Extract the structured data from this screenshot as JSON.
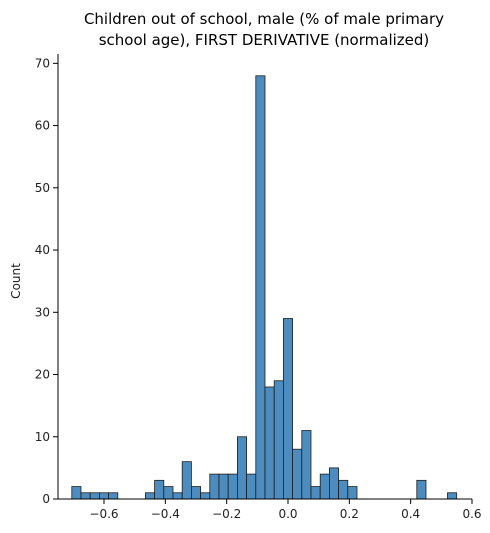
{
  "chart_data": {
    "type": "bar",
    "title_line1": "Children out of school, male (% of male primary",
    "title_line2": "school age), FIRST DERIVATIVE (normalized)",
    "xlabel": "",
    "ylabel": "Count",
    "xlim": [
      -0.75,
      0.6
    ],
    "ylim": [
      0,
      71.5
    ],
    "xticks": [
      -0.6,
      -0.4,
      -0.2,
      0.0,
      0.2,
      0.4,
      0.6
    ],
    "xtick_labels": [
      "−0.6",
      "−0.4",
      "−0.2",
      "0.0",
      "0.2",
      "0.4",
      "0.6"
    ],
    "yticks": [
      0,
      10,
      20,
      30,
      40,
      50,
      60,
      70
    ],
    "ytick_labels": [
      "0",
      "10",
      "20",
      "30",
      "40",
      "50",
      "60",
      "70"
    ],
    "bar_color": "#4c8cbf",
    "bins": [
      {
        "x0": -0.705,
        "x1": -0.675,
        "count": 2
      },
      {
        "x0": -0.675,
        "x1": -0.645,
        "count": 1
      },
      {
        "x0": -0.645,
        "x1": -0.615,
        "count": 1
      },
      {
        "x0": -0.615,
        "x1": -0.585,
        "count": 1
      },
      {
        "x0": -0.585,
        "x1": -0.555,
        "count": 1
      },
      {
        "x0": -0.465,
        "x1": -0.435,
        "count": 1
      },
      {
        "x0": -0.435,
        "x1": -0.405,
        "count": 3
      },
      {
        "x0": -0.405,
        "x1": -0.375,
        "count": 2
      },
      {
        "x0": -0.375,
        "x1": -0.345,
        "count": 1
      },
      {
        "x0": -0.345,
        "x1": -0.315,
        "count": 6
      },
      {
        "x0": -0.315,
        "x1": -0.285,
        "count": 2
      },
      {
        "x0": -0.285,
        "x1": -0.255,
        "count": 1
      },
      {
        "x0": -0.255,
        "x1": -0.225,
        "count": 4
      },
      {
        "x0": -0.225,
        "x1": -0.195,
        "count": 4
      },
      {
        "x0": -0.195,
        "x1": -0.165,
        "count": 4
      },
      {
        "x0": -0.165,
        "x1": -0.135,
        "count": 10
      },
      {
        "x0": -0.135,
        "x1": -0.105,
        "count": 4
      },
      {
        "x0": -0.105,
        "x1": -0.075,
        "count": 68
      },
      {
        "x0": -0.075,
        "x1": -0.045,
        "count": 18
      },
      {
        "x0": -0.045,
        "x1": -0.015,
        "count": 19
      },
      {
        "x0": -0.015,
        "x1": 0.015,
        "count": 29
      },
      {
        "x0": 0.015,
        "x1": 0.045,
        "count": 8
      },
      {
        "x0": 0.045,
        "x1": 0.075,
        "count": 11
      },
      {
        "x0": 0.075,
        "x1": 0.105,
        "count": 2
      },
      {
        "x0": 0.105,
        "x1": 0.135,
        "count": 4
      },
      {
        "x0": 0.135,
        "x1": 0.165,
        "count": 5
      },
      {
        "x0": 0.165,
        "x1": 0.195,
        "count": 3
      },
      {
        "x0": 0.195,
        "x1": 0.225,
        "count": 2
      },
      {
        "x0": 0.42,
        "x1": 0.45,
        "count": 3
      },
      {
        "x0": 0.52,
        "x1": 0.55,
        "count": 1
      }
    ]
  }
}
